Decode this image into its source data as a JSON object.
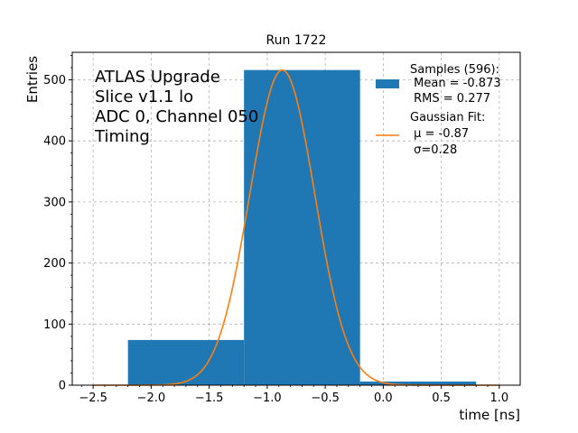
{
  "chart_data": {
    "type": "bar",
    "title": "Run 1722",
    "xlabel": "time [ns]",
    "ylabel": "Entries",
    "xlim": [
      -2.68,
      1.18
    ],
    "ylim": [
      0,
      545
    ],
    "xticks": [
      -2.5,
      -2.0,
      -1.5,
      -1.0,
      -0.5,
      0.0,
      0.5,
      1.0
    ],
    "xtick_labels": [
      "−2.5",
      "−2.0",
      "−1.5",
      "−1.0",
      "−0.5",
      "0.0",
      "0.5",
      "1.0"
    ],
    "yticks": [
      0,
      100,
      200,
      300,
      400,
      500
    ],
    "ytick_labels": [
      "0",
      "100",
      "200",
      "300",
      "400",
      "500"
    ],
    "grid": true,
    "legend_position": "top-right",
    "annotation_lines": [
      "ATLAS Upgrade",
      "Slice v1.1 lo",
      "ADC 0, Channel 050",
      "Timing"
    ],
    "histogram": {
      "name": "Samples (596):",
      "stats": [
        " Mean = -0.873",
        " RMS = 0.277"
      ],
      "color": "#1f77b4",
      "bins": [
        {
          "x0": -2.2,
          "x1": -1.2,
          "value": 74
        },
        {
          "x0": -1.2,
          "x1": -0.2,
          "value": 516
        },
        {
          "x0": -0.2,
          "x1": 0.8,
          "value": 6
        }
      ]
    },
    "fit": {
      "name": "Gaussian Fit:",
      "stats": [
        " μ = -0.87",
        " σ=0.28"
      ],
      "color": "#ff7f0e",
      "mu": -0.87,
      "sigma": 0.28,
      "amplitude": 516,
      "x_range": [
        -2.5,
        1.0
      ]
    }
  }
}
